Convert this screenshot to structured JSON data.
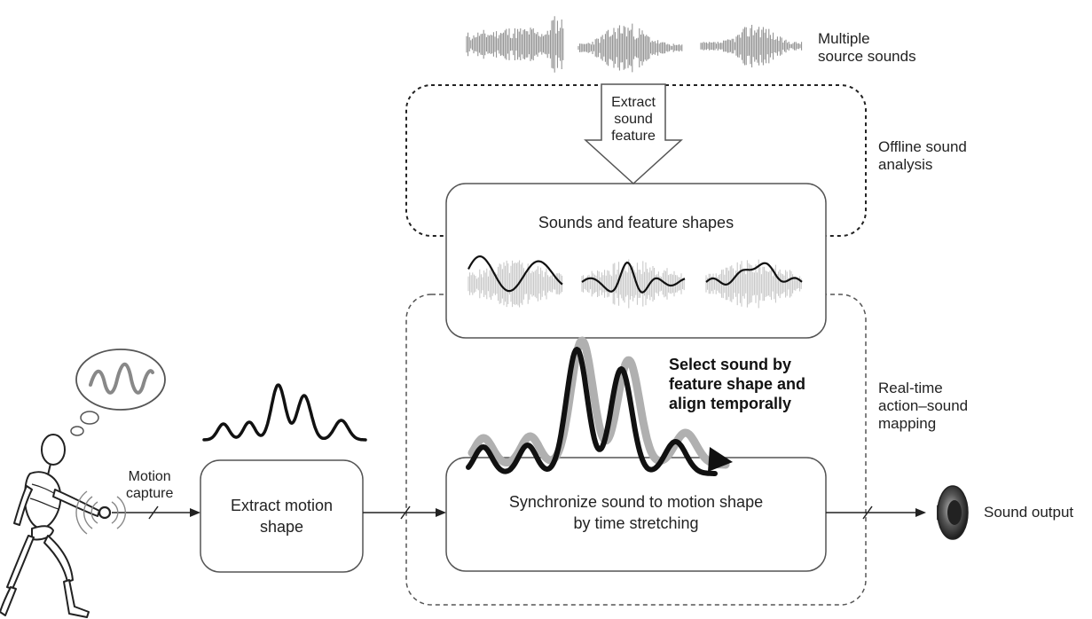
{
  "labels": {
    "multiple_sources": [
      "Multiple",
      "source sounds"
    ],
    "extract_sound_feature": [
      "Extract",
      "sound",
      "feature"
    ],
    "offline_analysis": [
      "Offline sound",
      "analysis"
    ],
    "sounds_feature_shapes": "Sounds and feature shapes",
    "select_align": [
      "Select sound by",
      "feature shape and",
      "align temporally"
    ],
    "realtime_mapping": [
      "Real-time",
      "action–sound",
      "mapping"
    ],
    "motion_capture": [
      "Motion",
      "capture"
    ],
    "extract_motion": [
      "Extract motion",
      "shape"
    ],
    "synchronize": [
      "Synchronize sound to motion shape",
      "by time stretching"
    ],
    "sound_output": "Sound output"
  },
  "colors": {
    "line": "#222222",
    "waveform": "#8a8a8a",
    "waveform_light": "#c4c4c4",
    "box_border": "#555555"
  },
  "icons": [
    "speaker-icon",
    "stick-figure-icon",
    "thought-bubble-icon"
  ]
}
